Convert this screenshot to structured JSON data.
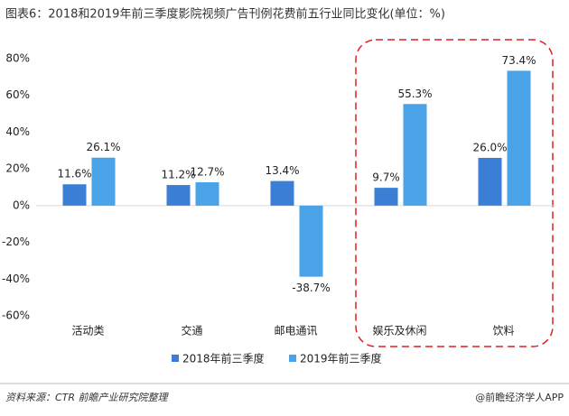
{
  "chart_data": {
    "type": "bar",
    "title": "图表6：2018和2019年前三季度影院视频广告刊例花费前五行业同比变化(单位：%)",
    "categories": [
      "活动类",
      "交通",
      "邮电通讯",
      "娱乐及休闲",
      "饮料"
    ],
    "series": [
      {
        "name": "2018年前三季度",
        "color": "#3a7fd5",
        "values": [
          11.6,
          11.2,
          13.4,
          9.7,
          26.0
        ],
        "value_labels": [
          "11.6%",
          "11.2%",
          "13.4%",
          "9.7%",
          "26.0%"
        ]
      },
      {
        "name": "2019年前三季度",
        "color": "#4aa3e6",
        "values": [
          26.1,
          12.7,
          -38.7,
          55.3,
          73.4
        ],
        "value_labels": [
          "26.1%",
          "12.7%",
          "-38.7%",
          "55.3%",
          "73.4%"
        ]
      }
    ],
    "ylim": [
      -60,
      80
    ],
    "yticks": [
      {
        "value": -60,
        "label": "-60%"
      },
      {
        "value": -40,
        "label": "-40%"
      },
      {
        "value": -20,
        "label": "-20%"
      },
      {
        "value": 0,
        "label": "0%"
      },
      {
        "value": 20,
        "label": "20%"
      },
      {
        "value": 40,
        "label": "40%"
      },
      {
        "value": 60,
        "label": "60%"
      },
      {
        "value": 80,
        "label": "80%"
      }
    ],
    "source": "资料来源：CTR 前瞻产业研究院整理",
    "brand": "@前瞻经济学人APP"
  }
}
